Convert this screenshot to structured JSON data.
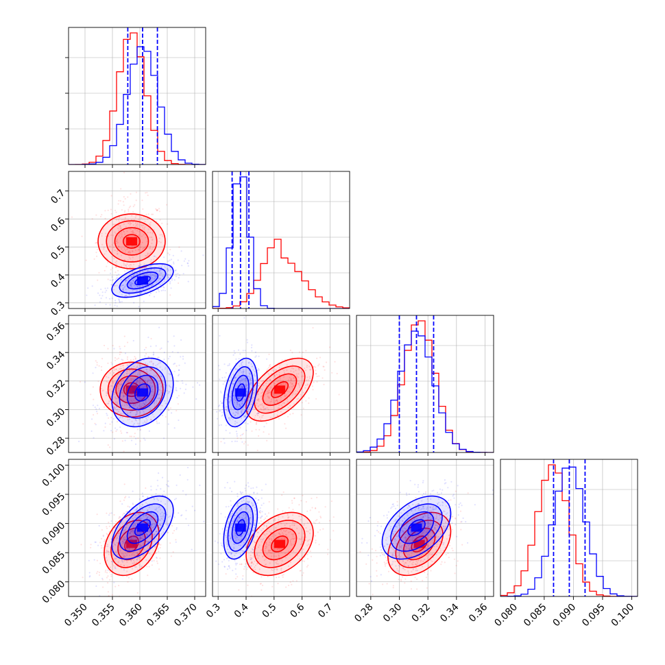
{
  "chart_data": {
    "type": "corner",
    "params": [
      {
        "xlim": [
          0.347,
          0.372
        ],
        "ticks": [
          0.35,
          0.355,
          0.36,
          0.365,
          0.37
        ],
        "tick_labels": [
          "0.350",
          "0.355",
          "0.360",
          "0.365",
          "0.370"
        ]
      },
      {
        "xlim": [
          0.28,
          0.77
        ],
        "ticks": [
          0.3,
          0.4,
          0.5,
          0.6,
          0.7
        ],
        "tick_labels": [
          "0.3",
          "0.4",
          "0.5",
          "0.6",
          "0.7"
        ]
      },
      {
        "xlim": [
          0.27,
          0.366
        ],
        "ticks": [
          0.28,
          0.3,
          0.32,
          0.34,
          0.36
        ],
        "tick_labels": [
          "0.28",
          "0.30",
          "0.32",
          "0.34",
          "0.36"
        ]
      },
      {
        "xlim": [
          0.0775,
          0.101
        ],
        "ticks": [
          0.08,
          0.085,
          0.09,
          0.095,
          0.1
        ],
        "tick_labels": [
          "0.080",
          "0.085",
          "0.090",
          "0.095",
          "0.100"
        ]
      }
    ],
    "grid": true,
    "series": [
      {
        "color": "#ff0000",
        "mean": [
          0.3585,
          0.52,
          0.314,
          0.0865
        ],
        "sigma": [
          0.0025,
          0.06,
          0.011,
          0.0027
        ],
        "corr": [
          0,
          0,
          0.3,
          0.55,
          0.35,
          0.4
        ]
      },
      {
        "color": "#0000ff",
        "mean": [
          0.3605,
          0.38,
          0.312,
          0.0893
        ],
        "sigma": [
          0.0028,
          0.03,
          0.012,
          0.0027
        ],
        "corr": [
          0.55,
          0.25,
          0.55,
          0.35,
          0.4,
          0.45
        ],
        "quantiles": [
          [
            0.3578,
            0.3605,
            0.3632
          ],
          [
            0.35,
            0.38,
            0.41
          ],
          [
            0.3,
            0.312,
            0.324
          ],
          [
            0.0866,
            0.0893,
            0.092
          ]
        ]
      }
    ]
  }
}
